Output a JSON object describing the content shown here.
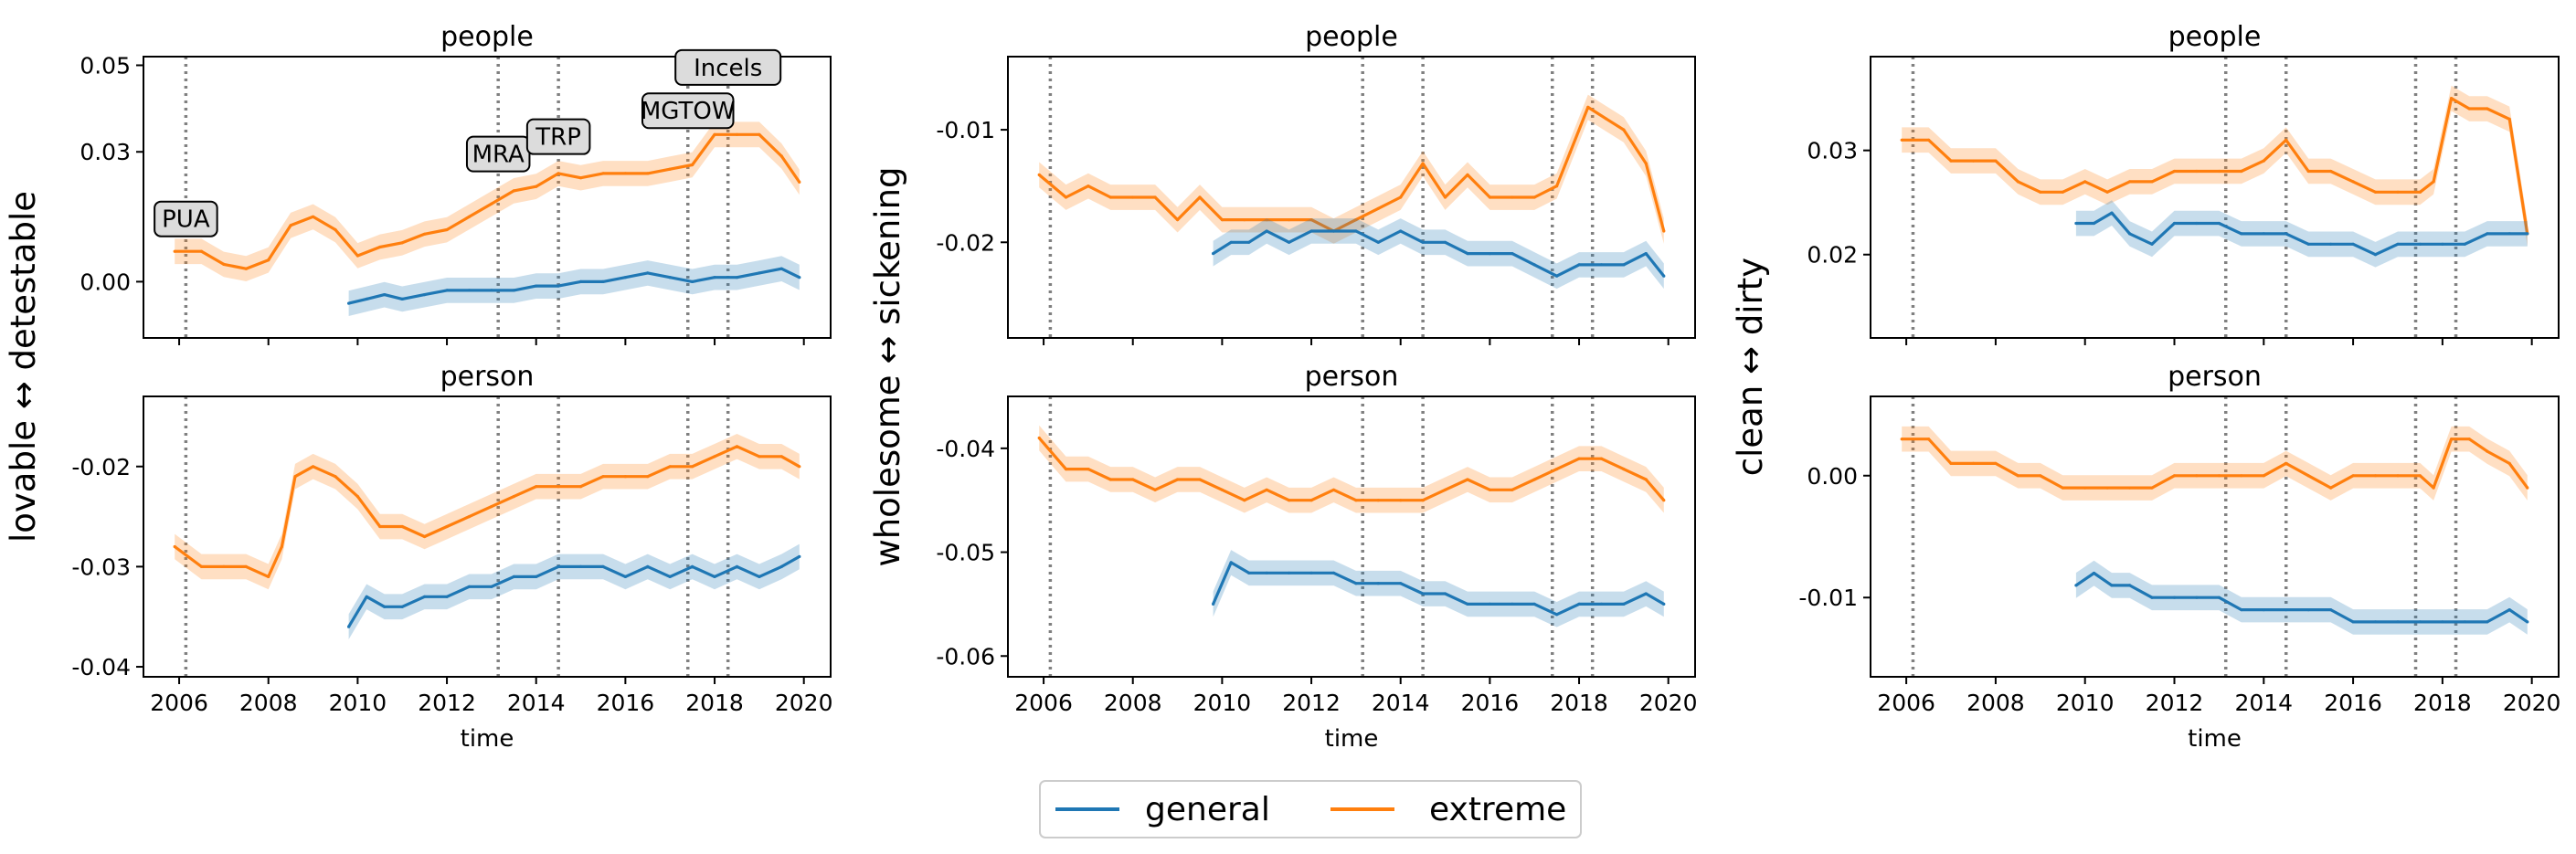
{
  "colors": {
    "general": "#1f77b4",
    "extreme": "#ff7f0e",
    "event_line": "#808080",
    "annotation_fill": "#dcdcdc"
  },
  "legend": {
    "items": [
      {
        "key": "general",
        "label": "general"
      },
      {
        "key": "extreme",
        "label": "extreme"
      }
    ]
  },
  "chart_data": [
    {
      "type": "line",
      "column": 0,
      "row": 0,
      "title": "people",
      "ylabel": "lovable ↔ detestable",
      "xlabel": "",
      "xlim": [
        2005.2,
        2020.6
      ],
      "ylim": [
        -0.013,
        0.052
      ],
      "yticks": [
        0.0,
        0.03,
        0.05
      ],
      "ytick_labels": [
        "0.00",
        "0.03",
        "0.05"
      ],
      "xticks": [
        2006,
        2008,
        2010,
        2012,
        2014,
        2016,
        2018,
        2020
      ],
      "show_xtick_labels": false,
      "event_lines": [
        2006.15,
        2013.15,
        2014.5,
        2017.4,
        2018.3
      ],
      "annotations": [
        {
          "text": "PUA",
          "x": 2006.15,
          "y": 0.0145
        },
        {
          "text": "MRA",
          "x": 2013.15,
          "y": 0.0295
        },
        {
          "text": "TRP",
          "x": 2014.5,
          "y": 0.0335
        },
        {
          "text": "MGTOW",
          "x": 2017.4,
          "y": 0.0395
        },
        {
          "text": "Incels",
          "x": 2018.3,
          "y": 0.0495
        }
      ],
      "series": [
        {
          "name": "extreme",
          "x": [
            2005.9,
            2006.5,
            2007.0,
            2007.5,
            2008.0,
            2008.5,
            2009.0,
            2009.5,
            2010.0,
            2010.5,
            2011.0,
            2011.5,
            2012.0,
            2012.5,
            2013.0,
            2013.5,
            2014.0,
            2014.5,
            2015.0,
            2015.5,
            2016.0,
            2016.5,
            2017.0,
            2017.5,
            2018.0,
            2018.5,
            2019.0,
            2019.5,
            2019.9
          ],
          "values": [
            0.007,
            0.007,
            0.004,
            0.003,
            0.005,
            0.013,
            0.015,
            0.012,
            0.006,
            0.008,
            0.009,
            0.011,
            0.012,
            0.015,
            0.018,
            0.021,
            0.022,
            0.025,
            0.024,
            0.025,
            0.025,
            0.025,
            0.026,
            0.027,
            0.034,
            0.034,
            0.034,
            0.029,
            0.023
          ]
        },
        {
          "name": "general",
          "x": [
            2009.8,
            2010.2,
            2010.6,
            2011.0,
            2011.5,
            2012.0,
            2012.5,
            2013.0,
            2013.5,
            2014.0,
            2014.5,
            2015.0,
            2015.5,
            2016.0,
            2016.5,
            2017.0,
            2017.5,
            2018.0,
            2018.5,
            2019.0,
            2019.5,
            2019.9
          ],
          "values": [
            -0.005,
            -0.004,
            -0.003,
            -0.004,
            -0.003,
            -0.002,
            -0.002,
            -0.002,
            -0.002,
            -0.001,
            -0.001,
            0.0,
            0.0,
            0.001,
            0.002,
            0.001,
            0.0,
            0.001,
            0.001,
            0.002,
            0.003,
            0.001
          ]
        }
      ]
    },
    {
      "type": "line",
      "column": 0,
      "row": 1,
      "title": "person",
      "ylabel": "lovable ↔ detestable",
      "xlabel": "time",
      "xlim": [
        2005.2,
        2020.6
      ],
      "ylim": [
        -0.041,
        -0.013
      ],
      "yticks": [
        -0.04,
        -0.03,
        -0.02
      ],
      "ytick_labels": [
        "-0.04",
        "-0.03",
        "-0.02"
      ],
      "xticks": [
        2006,
        2008,
        2010,
        2012,
        2014,
        2016,
        2018,
        2020
      ],
      "show_xtick_labels": true,
      "event_lines": [
        2006.15,
        2013.15,
        2014.5,
        2017.4,
        2018.3
      ],
      "annotations": [],
      "series": [
        {
          "name": "extreme",
          "x": [
            2005.9,
            2006.5,
            2007.0,
            2007.5,
            2008.0,
            2008.3,
            2008.6,
            2009.0,
            2009.5,
            2010.0,
            2010.5,
            2011.0,
            2011.5,
            2012.0,
            2012.5,
            2013.0,
            2013.5,
            2014.0,
            2014.5,
            2015.0,
            2015.5,
            2016.0,
            2016.5,
            2017.0,
            2017.5,
            2018.0,
            2018.5,
            2019.0,
            2019.5,
            2019.9
          ],
          "values": [
            -0.028,
            -0.03,
            -0.03,
            -0.03,
            -0.031,
            -0.028,
            -0.021,
            -0.02,
            -0.021,
            -0.023,
            -0.026,
            -0.026,
            -0.027,
            -0.026,
            -0.025,
            -0.024,
            -0.023,
            -0.022,
            -0.022,
            -0.022,
            -0.021,
            -0.021,
            -0.021,
            -0.02,
            -0.02,
            -0.019,
            -0.018,
            -0.019,
            -0.019,
            -0.02
          ]
        },
        {
          "name": "general",
          "x": [
            2009.8,
            2010.2,
            2010.6,
            2011.0,
            2011.5,
            2012.0,
            2012.5,
            2013.0,
            2013.5,
            2014.0,
            2014.5,
            2015.0,
            2015.5,
            2016.0,
            2016.5,
            2017.0,
            2017.5,
            2018.0,
            2018.5,
            2019.0,
            2019.5,
            2019.9
          ],
          "values": [
            -0.036,
            -0.033,
            -0.034,
            -0.034,
            -0.033,
            -0.033,
            -0.032,
            -0.032,
            -0.031,
            -0.031,
            -0.03,
            -0.03,
            -0.03,
            -0.031,
            -0.03,
            -0.031,
            -0.03,
            -0.031,
            -0.03,
            -0.031,
            -0.03,
            -0.029
          ]
        }
      ]
    },
    {
      "type": "line",
      "column": 1,
      "row": 0,
      "title": "people",
      "ylabel": "wholesome ↔ sickening",
      "xlabel": "",
      "xlim": [
        2005.2,
        2020.6
      ],
      "ylim": [
        -0.0285,
        -0.0035
      ],
      "yticks": [
        -0.02,
        -0.01
      ],
      "ytick_labels": [
        "-0.02",
        "-0.01"
      ],
      "xticks": [
        2006,
        2008,
        2010,
        2012,
        2014,
        2016,
        2018,
        2020
      ],
      "show_xtick_labels": false,
      "event_lines": [
        2006.15,
        2013.15,
        2014.5,
        2017.4,
        2018.3
      ],
      "annotations": [],
      "series": [
        {
          "name": "extreme",
          "x": [
            2005.9,
            2006.5,
            2007.0,
            2007.5,
            2008.0,
            2008.5,
            2009.0,
            2009.5,
            2010.0,
            2010.5,
            2011.0,
            2011.5,
            2012.0,
            2012.5,
            2013.0,
            2013.5,
            2014.0,
            2014.5,
            2015.0,
            2015.5,
            2016.0,
            2016.5,
            2017.0,
            2017.5,
            2017.8,
            2018.2,
            2018.6,
            2019.0,
            2019.5,
            2019.9
          ],
          "values": [
            -0.014,
            -0.016,
            -0.015,
            -0.016,
            -0.016,
            -0.016,
            -0.018,
            -0.016,
            -0.018,
            -0.018,
            -0.018,
            -0.018,
            -0.018,
            -0.019,
            -0.018,
            -0.017,
            -0.016,
            -0.013,
            -0.016,
            -0.014,
            -0.016,
            -0.016,
            -0.016,
            -0.015,
            -0.012,
            -0.008,
            -0.009,
            -0.01,
            -0.013,
            -0.019
          ]
        },
        {
          "name": "general",
          "x": [
            2009.8,
            2010.2,
            2010.6,
            2011.0,
            2011.5,
            2012.0,
            2012.5,
            2013.0,
            2013.5,
            2014.0,
            2014.5,
            2015.0,
            2015.5,
            2016.0,
            2016.5,
            2017.0,
            2017.5,
            2018.0,
            2018.5,
            2019.0,
            2019.5,
            2019.9
          ],
          "values": [
            -0.021,
            -0.02,
            -0.02,
            -0.019,
            -0.02,
            -0.019,
            -0.019,
            -0.019,
            -0.02,
            -0.019,
            -0.02,
            -0.02,
            -0.021,
            -0.021,
            -0.021,
            -0.022,
            -0.023,
            -0.022,
            -0.022,
            -0.022,
            -0.021,
            -0.023
          ]
        }
      ]
    },
    {
      "type": "line",
      "column": 1,
      "row": 1,
      "title": "person",
      "ylabel": "wholesome ↔ sickening",
      "xlabel": "time",
      "xlim": [
        2005.2,
        2020.6
      ],
      "ylim": [
        -0.062,
        -0.035
      ],
      "yticks": [
        -0.06,
        -0.05,
        -0.04
      ],
      "ytick_labels": [
        "-0.06",
        "-0.05",
        "-0.04"
      ],
      "xticks": [
        2006,
        2008,
        2010,
        2012,
        2014,
        2016,
        2018,
        2020
      ],
      "show_xtick_labels": true,
      "event_lines": [
        2006.15,
        2013.15,
        2014.5,
        2017.4,
        2018.3
      ],
      "annotations": [],
      "series": [
        {
          "name": "extreme",
          "x": [
            2005.9,
            2006.5,
            2007.0,
            2007.5,
            2008.0,
            2008.5,
            2009.0,
            2009.5,
            2010.0,
            2010.5,
            2011.0,
            2011.5,
            2012.0,
            2012.5,
            2013.0,
            2013.5,
            2014.0,
            2014.5,
            2015.0,
            2015.5,
            2016.0,
            2016.5,
            2017.0,
            2017.5,
            2018.0,
            2018.5,
            2019.0,
            2019.5,
            2019.9
          ],
          "values": [
            -0.039,
            -0.042,
            -0.042,
            -0.043,
            -0.043,
            -0.044,
            -0.043,
            -0.043,
            -0.044,
            -0.045,
            -0.044,
            -0.045,
            -0.045,
            -0.044,
            -0.045,
            -0.045,
            -0.045,
            -0.045,
            -0.044,
            -0.043,
            -0.044,
            -0.044,
            -0.043,
            -0.042,
            -0.041,
            -0.041,
            -0.042,
            -0.043,
            -0.045
          ]
        },
        {
          "name": "general",
          "x": [
            2009.8,
            2010.2,
            2010.6,
            2011.0,
            2011.5,
            2012.0,
            2012.5,
            2013.0,
            2013.5,
            2014.0,
            2014.5,
            2015.0,
            2015.5,
            2016.0,
            2016.5,
            2017.0,
            2017.5,
            2018.0,
            2018.5,
            2019.0,
            2019.5,
            2019.9
          ],
          "values": [
            -0.055,
            -0.051,
            -0.052,
            -0.052,
            -0.052,
            -0.052,
            -0.052,
            -0.053,
            -0.053,
            -0.053,
            -0.054,
            -0.054,
            -0.055,
            -0.055,
            -0.055,
            -0.055,
            -0.056,
            -0.055,
            -0.055,
            -0.055,
            -0.054,
            -0.055
          ]
        }
      ]
    },
    {
      "type": "line",
      "column": 2,
      "row": 0,
      "title": "people",
      "ylabel": "clean ↔ dirty",
      "xlabel": "",
      "xlim": [
        2005.2,
        2020.6
      ],
      "ylim": [
        0.012,
        0.039
      ],
      "yticks": [
        0.02,
        0.03
      ],
      "ytick_labels": [
        "0.02",
        "0.03"
      ],
      "xticks": [
        2006,
        2008,
        2010,
        2012,
        2014,
        2016,
        2018,
        2020
      ],
      "show_xtick_labels": false,
      "event_lines": [
        2006.15,
        2013.15,
        2014.5,
        2017.4,
        2018.3
      ],
      "annotations": [],
      "series": [
        {
          "name": "extreme",
          "x": [
            2005.9,
            2006.5,
            2007.0,
            2007.5,
            2008.0,
            2008.5,
            2009.0,
            2009.5,
            2010.0,
            2010.5,
            2011.0,
            2011.5,
            2012.0,
            2012.5,
            2013.0,
            2013.5,
            2014.0,
            2014.5,
            2015.0,
            2015.5,
            2016.0,
            2016.5,
            2017.0,
            2017.5,
            2017.8,
            2018.2,
            2018.6,
            2019.0,
            2019.5,
            2019.9
          ],
          "values": [
            0.031,
            0.031,
            0.029,
            0.029,
            0.029,
            0.027,
            0.026,
            0.026,
            0.027,
            0.026,
            0.027,
            0.027,
            0.028,
            0.028,
            0.028,
            0.028,
            0.029,
            0.031,
            0.028,
            0.028,
            0.027,
            0.026,
            0.026,
            0.026,
            0.027,
            0.035,
            0.034,
            0.034,
            0.033,
            0.022
          ]
        },
        {
          "name": "general",
          "x": [
            2009.8,
            2010.2,
            2010.6,
            2011.0,
            2011.5,
            2012.0,
            2012.5,
            2013.0,
            2013.5,
            2014.0,
            2014.5,
            2015.0,
            2015.5,
            2016.0,
            2016.5,
            2017.0,
            2017.5,
            2018.0,
            2018.5,
            2019.0,
            2019.5,
            2019.9
          ],
          "values": [
            0.023,
            0.023,
            0.024,
            0.022,
            0.021,
            0.023,
            0.023,
            0.023,
            0.022,
            0.022,
            0.022,
            0.021,
            0.021,
            0.021,
            0.02,
            0.021,
            0.021,
            0.021,
            0.021,
            0.022,
            0.022,
            0.022
          ]
        }
      ]
    },
    {
      "type": "line",
      "column": 2,
      "row": 1,
      "title": "person",
      "ylabel": "clean ↔ dirty",
      "xlabel": "time",
      "xlim": [
        2005.2,
        2020.6
      ],
      "ylim": [
        -0.0165,
        0.0065
      ],
      "yticks": [
        -0.01,
        0.0
      ],
      "ytick_labels": [
        "-0.01",
        "0.00"
      ],
      "xticks": [
        2006,
        2008,
        2010,
        2012,
        2014,
        2016,
        2018,
        2020
      ],
      "show_xtick_labels": true,
      "event_lines": [
        2006.15,
        2013.15,
        2014.5,
        2017.4,
        2018.3
      ],
      "annotations": [],
      "series": [
        {
          "name": "extreme",
          "x": [
            2005.9,
            2006.5,
            2007.0,
            2007.5,
            2008.0,
            2008.5,
            2009.0,
            2009.5,
            2010.0,
            2010.5,
            2011.0,
            2011.5,
            2012.0,
            2012.5,
            2013.0,
            2013.5,
            2014.0,
            2014.5,
            2015.0,
            2015.5,
            2016.0,
            2016.5,
            2017.0,
            2017.5,
            2017.8,
            2018.2,
            2018.6,
            2019.0,
            2019.5,
            2019.9
          ],
          "values": [
            0.003,
            0.003,
            0.001,
            0.001,
            0.001,
            0.0,
            0.0,
            -0.001,
            -0.001,
            -0.001,
            -0.001,
            -0.001,
            0.0,
            0.0,
            0.0,
            0.0,
            0.0,
            0.001,
            0.0,
            -0.001,
            0.0,
            0.0,
            0.0,
            0.0,
            -0.001,
            0.003,
            0.003,
            0.002,
            0.001,
            -0.001
          ]
        },
        {
          "name": "general",
          "x": [
            2009.8,
            2010.2,
            2010.6,
            2011.0,
            2011.5,
            2012.0,
            2012.5,
            2013.0,
            2013.5,
            2014.0,
            2014.5,
            2015.0,
            2015.5,
            2016.0,
            2016.5,
            2017.0,
            2017.5,
            2018.0,
            2018.5,
            2019.0,
            2019.5,
            2019.9
          ],
          "values": [
            -0.009,
            -0.008,
            -0.009,
            -0.009,
            -0.01,
            -0.01,
            -0.01,
            -0.01,
            -0.011,
            -0.011,
            -0.011,
            -0.011,
            -0.011,
            -0.012,
            -0.012,
            -0.012,
            -0.012,
            -0.012,
            -0.012,
            -0.012,
            -0.011,
            -0.012
          ]
        }
      ]
    }
  ]
}
